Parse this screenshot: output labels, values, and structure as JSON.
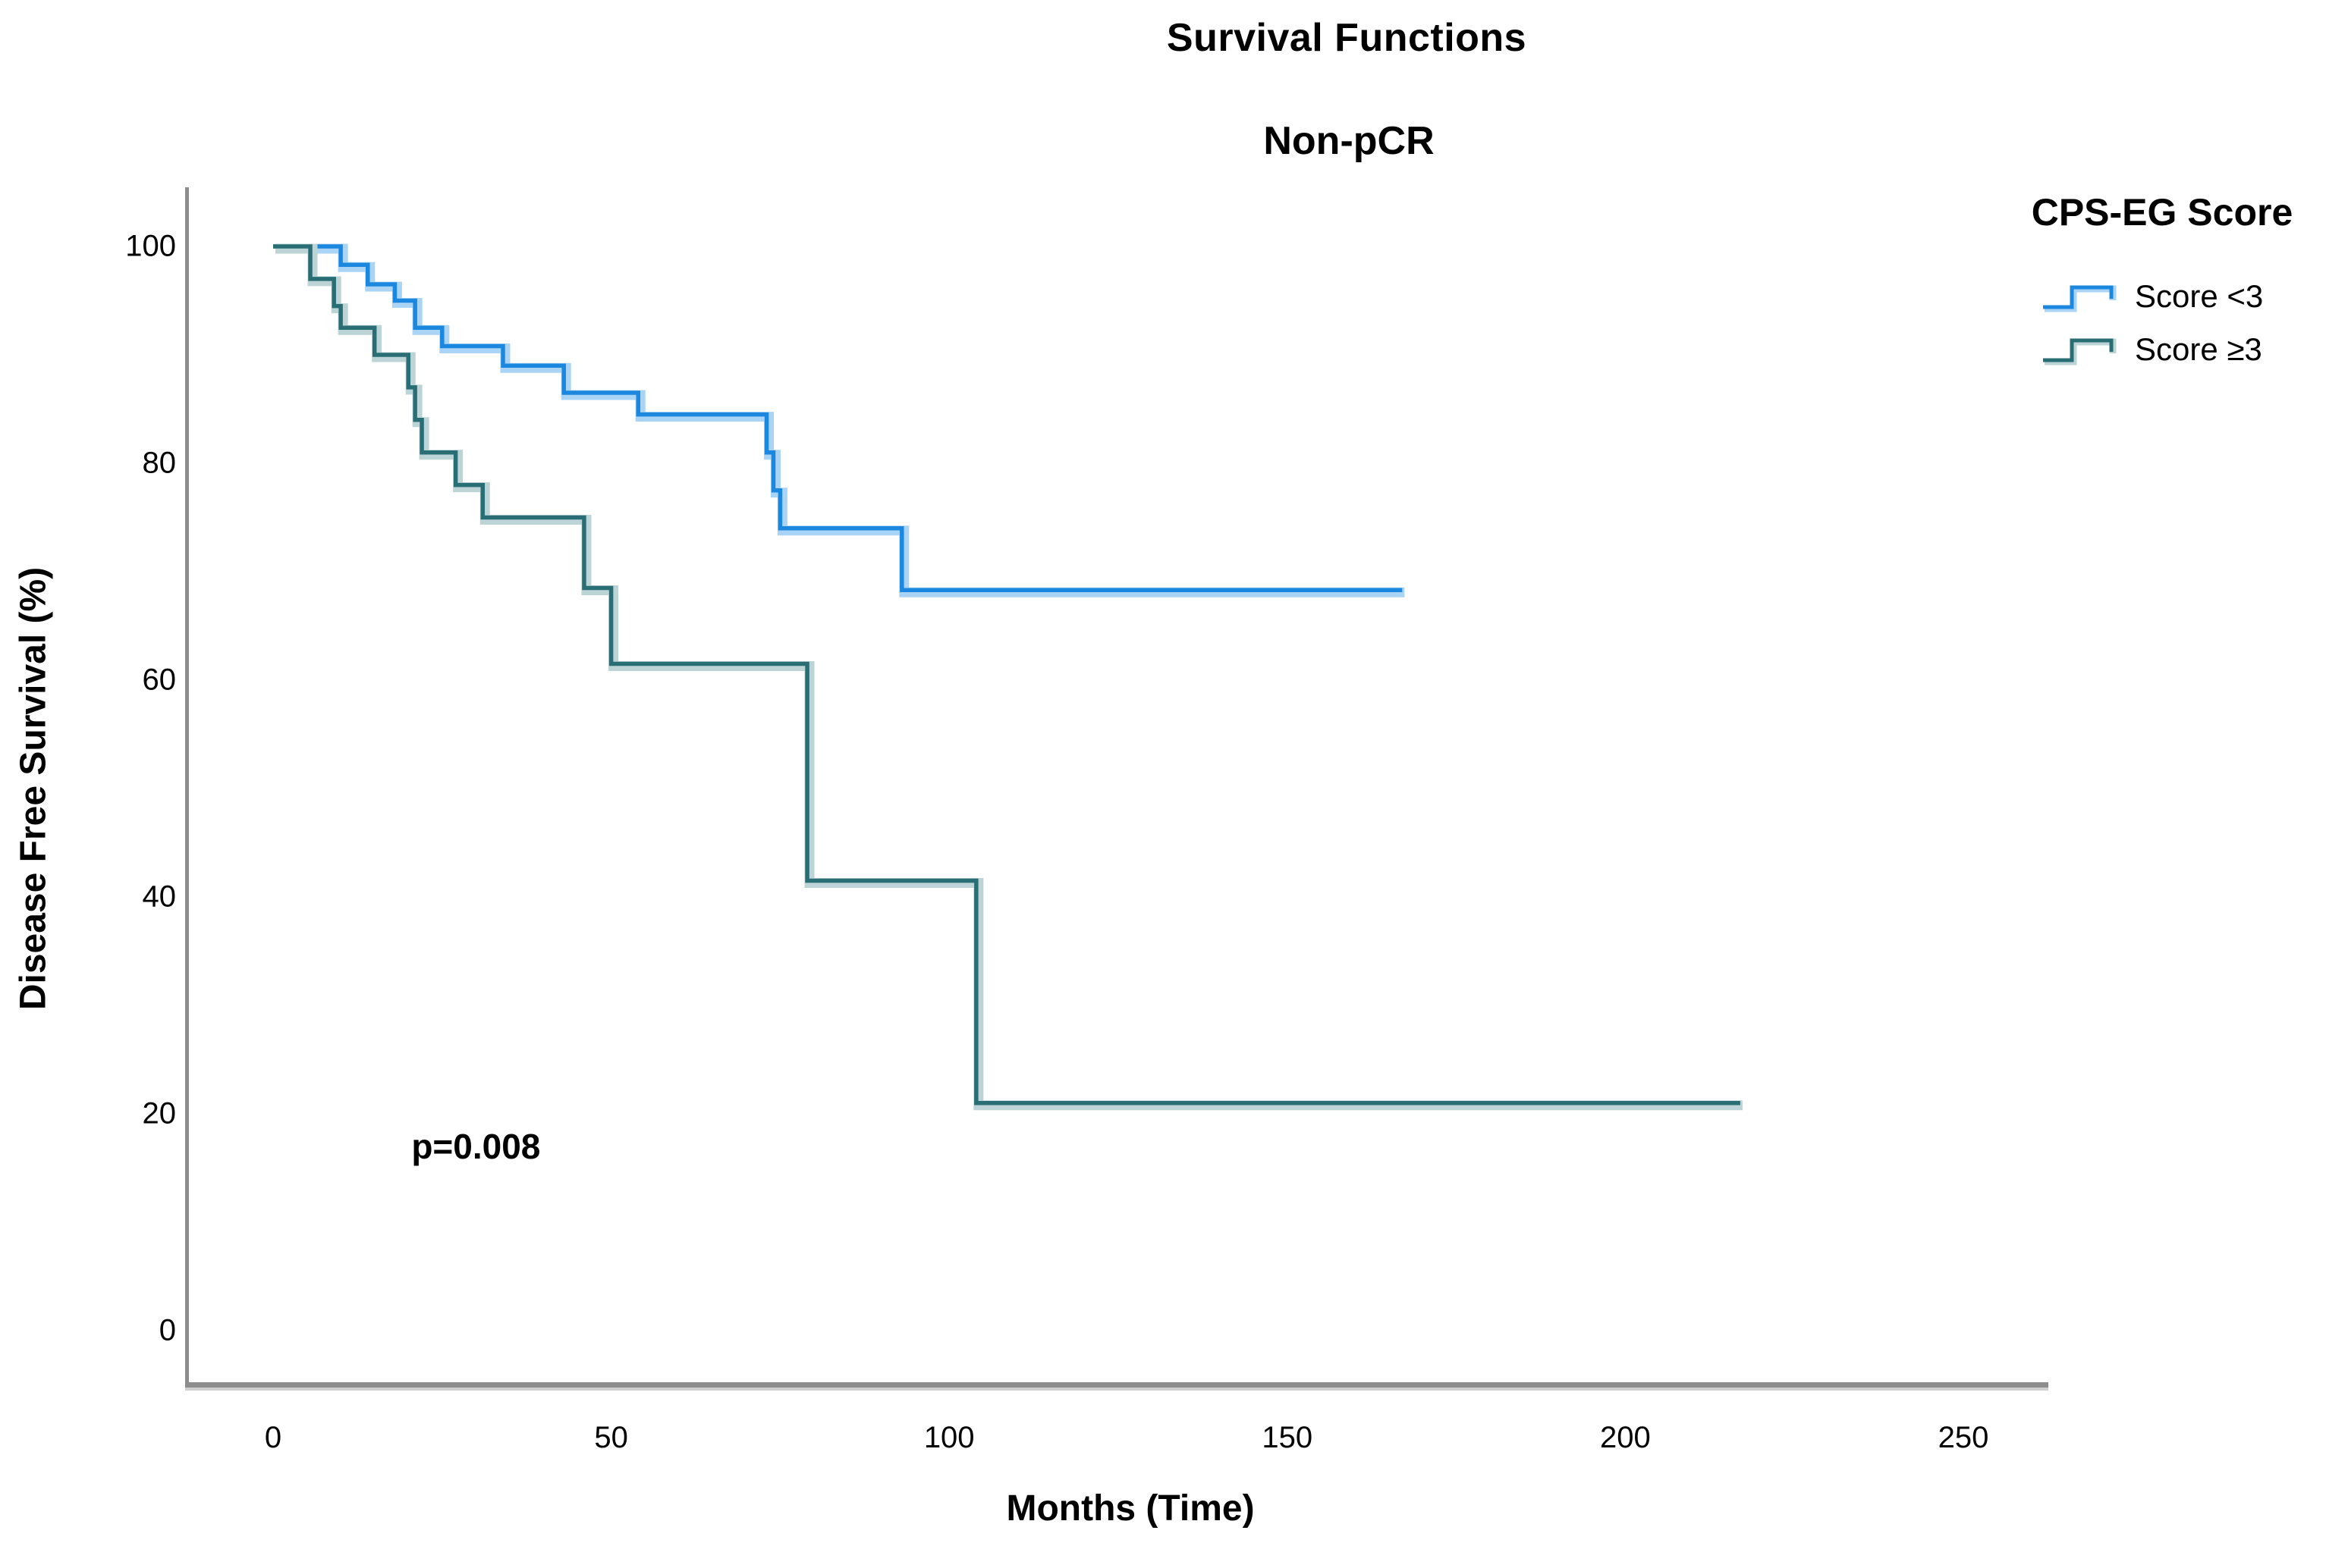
{
  "figure": {
    "title": "Survival Functions",
    "subtitle": "Non-pCR"
  },
  "chart_data": {
    "type": "line",
    "subtype": "kaplan-meier-step",
    "title": "Survival Functions",
    "subtitle": "Non-pCR",
    "xlabel": "Months (Time)",
    "ylabel": "Disease Free Survival (%)",
    "xlim": [
      0,
      250
    ],
    "ylim": [
      0,
      100
    ],
    "xticks": [
      "0",
      "50",
      "100",
      "150",
      "200",
      "250"
    ],
    "ytick_values": [
      0,
      20,
      40,
      60,
      80,
      100
    ],
    "xtick_values": [
      0,
      50,
      100,
      150,
      200,
      250
    ],
    "yticks": [
      "0",
      "20",
      "40",
      "60",
      "80",
      "100"
    ],
    "grid": false,
    "legend": {
      "title": "CPS-EG Score",
      "position": "right",
      "entries": [
        {
          "label": "Score <3",
          "color": "#1C87DE",
          "halo": "#A9D4F6"
        },
        {
          "label": "Score ≥3",
          "color": "#2A6E75",
          "halo": "#BCD4D6"
        }
      ]
    },
    "annotations": [
      {
        "text": "p=0.008",
        "x": 30,
        "y": 17
      }
    ],
    "series": [
      {
        "name": "Score <3",
        "color": "#1C87DE",
        "halo": "#A9D4F6",
        "end_time": 167,
        "points": [
          [
            0,
            100
          ],
          [
            10,
            98.3
          ],
          [
            14,
            96.5
          ],
          [
            18,
            95
          ],
          [
            21,
            92.5
          ],
          [
            25,
            90.8
          ],
          [
            34,
            89
          ],
          [
            43,
            86.5
          ],
          [
            54,
            84.5
          ],
          [
            73,
            81
          ],
          [
            74,
            77.5
          ],
          [
            75,
            74
          ],
          [
            93,
            68.3
          ]
        ]
      },
      {
        "name": "Score ≥3",
        "color": "#2A6E75",
        "halo": "#BCD4D6",
        "end_time": 217,
        "points": [
          [
            0,
            100
          ],
          [
            5.5,
            97
          ],
          [
            9,
            94.5
          ],
          [
            10,
            92.5
          ],
          [
            15,
            90
          ],
          [
            20,
            87
          ],
          [
            21,
            84
          ],
          [
            22,
            81
          ],
          [
            27,
            78
          ],
          [
            31,
            75
          ],
          [
            46,
            68.5
          ],
          [
            50,
            61.5
          ],
          [
            79,
            41.5
          ],
          [
            104,
            21
          ]
        ]
      }
    ]
  }
}
